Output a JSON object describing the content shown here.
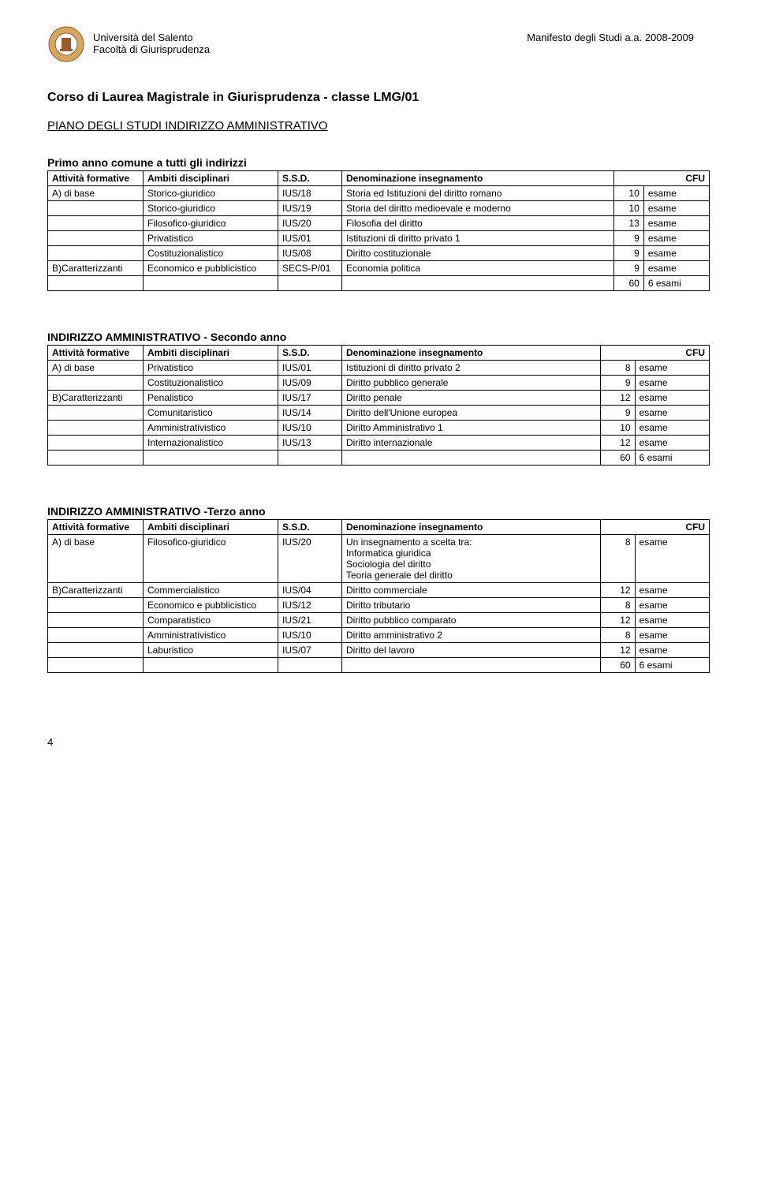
{
  "header": {
    "university": "Università del Salento",
    "faculty": "Facoltà di Giurisprudenza",
    "manifesto": "Manifesto degli Studi  a.a. 2008-2009",
    "logo_bg": "#d4a860",
    "logo_inner": "#9a5a2a"
  },
  "title": "Corso di Laurea Magistrale in Giurisprudenza - classe LMG/01",
  "subtitle": "PIANO DEGLI STUDI   INDIRIZZO AMMINISTRATIVO",
  "columns": {
    "att": "Attività formative",
    "amb": "Ambiti disciplinari",
    "ssd": "S.S.D.",
    "ins": "Denominazione insegnamento",
    "ins2": "Denominazione  insegnamento",
    "cfu": "CFU"
  },
  "table1": {
    "caption": "Primo anno comune a tutti gli indirizzi",
    "rows": [
      {
        "att": "A) di base",
        "amb": "Storico-giuridico",
        "ssd": "IUS/18",
        "ins": "Storia ed Istituzioni del diritto romano",
        "cfu": "10",
        "ex": "esame"
      },
      {
        "att": "",
        "amb": "Storico-giuridico",
        "ssd": "IUS/19",
        "ins": "Storia del diritto medioevale e moderno",
        "cfu": "10",
        "ex": "esame"
      },
      {
        "att": "",
        "amb": "Filosofico-giuridico",
        "ssd": "IUS/20",
        "ins": "Filosofia del diritto",
        "cfu": "13",
        "ex": "esame"
      },
      {
        "att": "",
        "amb": "Privatistico",
        "ssd": "IUS/01",
        "ins": "Istituzioni di diritto privato 1",
        "cfu": "9",
        "ex": "esame"
      },
      {
        "att": "",
        "amb": "Costituzionalistico",
        "ssd": "IUS/08",
        "ins": "Diritto costituzionale",
        "cfu": "9",
        "ex": "esame"
      },
      {
        "att": "B)Caratterizzanti",
        "amb": "Economico e pubblicistico",
        "ssd": "SECS-P/01",
        "ins": "Economia politica",
        "cfu": "9",
        "ex": "esame"
      }
    ],
    "total": {
      "cfu": "60",
      "ex": "6 esami"
    }
  },
  "table2": {
    "caption": "INDIRIZZO AMMINISTRATIVO - Secondo anno",
    "rows": [
      {
        "att": "A) di base",
        "amb": "Privatistico",
        "ssd": "IUS/01",
        "ins": "Istituzioni di diritto privato 2",
        "cfu": "8",
        "ex": "esame"
      },
      {
        "att": "",
        "amb": "Costituzionalistico",
        "ssd": "IUS/09",
        "ins": "Diritto pubblico generale",
        "cfu": "9",
        "ex": "esame"
      },
      {
        "att": "B)Caratterizzanti",
        "amb": "Penalistico",
        "ssd": "IUS/17",
        "ins": "Diritto penale",
        "cfu": "12",
        "ex": "esame"
      },
      {
        "att": "",
        "amb": "Comunitaristico",
        "ssd": "IUS/14",
        "ins": "Diritto dell'Unione europea",
        "cfu": "9",
        "ex": "esame"
      },
      {
        "att": "",
        "amb": "Amministrativistico",
        "ssd": "IUS/10",
        "ins": "Diritto Amministrativo 1",
        "cfu": "10",
        "ex": "esame"
      },
      {
        "att": "",
        "amb": "Internazionalistico",
        "ssd": "IUS/13",
        "ins": "Diritto internazionale",
        "cfu": "12",
        "ex": "esame"
      }
    ],
    "total": {
      "cfu": "60",
      "ex": "6 esami"
    }
  },
  "table3": {
    "caption": "INDIRIZZO AMMINISTRATIVO -Terzo anno",
    "rows": [
      {
        "att": "A) di base",
        "amb": "Filosofico-giuridico",
        "ssd": "IUS/20",
        "ins": "Un insegnamento a scelta tra:\nInformatica giuridica\nSociologia del diritto\nTeoria generale del diritto",
        "cfu": "8",
        "ex": "esame"
      },
      {
        "att": "B)Caratterizzanti",
        "amb": "Commercialistico",
        "ssd": "IUS/04",
        "ins": "Diritto commerciale",
        "cfu": "12",
        "ex": "esame"
      },
      {
        "att": "",
        "amb": "Economico e pubblicistico",
        "ssd": "IUS/12",
        "ins": "Diritto tributario",
        "cfu": "8",
        "ex": "esame"
      },
      {
        "att": "",
        "amb": "Comparatistico",
        "ssd": "IUS/21",
        "ins": "Diritto pubblico comparato",
        "cfu": "12",
        "ex": "esame"
      },
      {
        "att": "",
        "amb": "Amministrativistico",
        "ssd": "IUS/10",
        "ins": "Diritto amministrativo 2",
        "cfu": "8",
        "ex": "esame"
      },
      {
        "att": "",
        "amb": "Laburistico",
        "ssd": "IUS/07",
        "ins": "Diritto del lavoro",
        "cfu": "12",
        "ex": "esame"
      }
    ],
    "total": {
      "cfu": "60",
      "ex": "6 esami"
    }
  },
  "pageNumber": "4"
}
